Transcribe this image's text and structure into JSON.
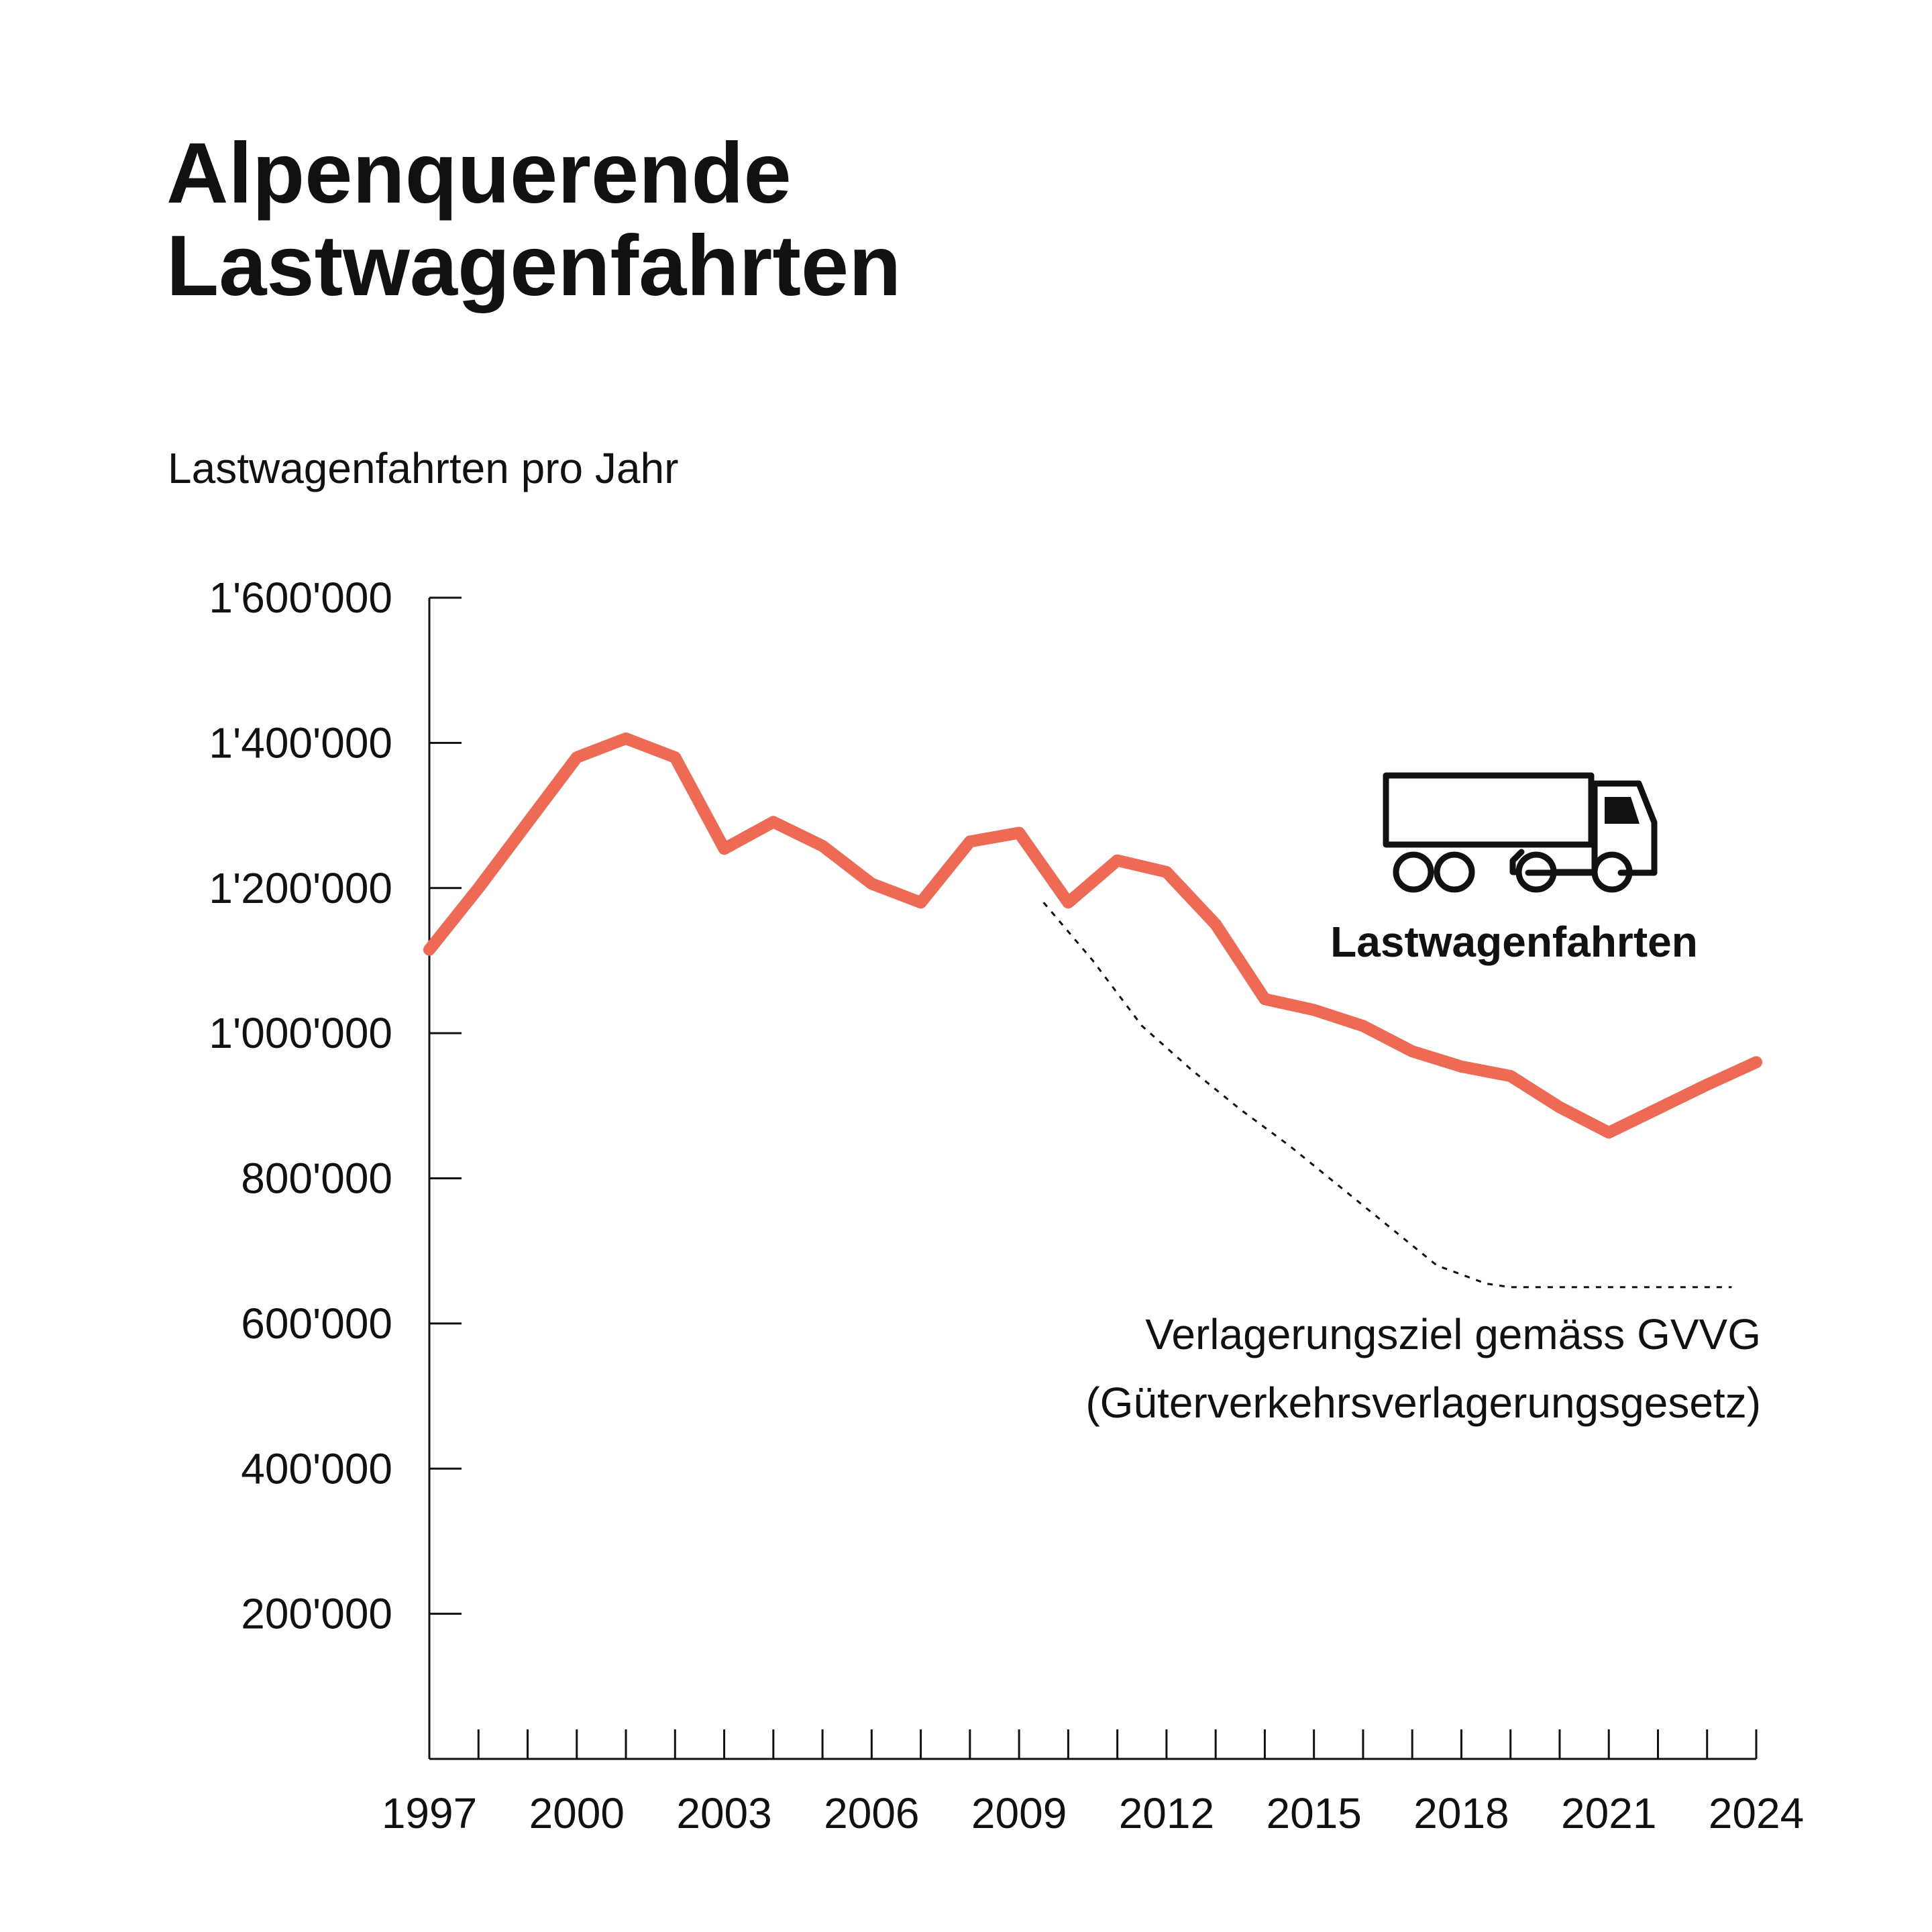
{
  "chart_data": {
    "type": "line",
    "title_lines": [
      "Alpenquerende",
      "Lastwagenfahrten"
    ],
    "subtitle": "Lastwagenfahrten pro Jahr",
    "xlabel": "",
    "ylabel": "",
    "xlim": [
      1997,
      2024
    ],
    "ylim": [
      0,
      1600000
    ],
    "y_ticks": [
      200000,
      400000,
      600000,
      800000,
      1000000,
      1200000,
      1400000,
      1600000
    ],
    "y_tick_labels": [
      "200'000",
      "400'000",
      "600'000",
      "800'000",
      "1'000'000",
      "1'200'000",
      "1'400'000",
      "1'600'000"
    ],
    "x_minor_ticks": [
      1997,
      1998,
      1999,
      2000,
      2001,
      2002,
      2003,
      2004,
      2005,
      2006,
      2007,
      2008,
      2009,
      2010,
      2011,
      2012,
      2013,
      2014,
      2015,
      2016,
      2017,
      2018,
      2019,
      2020,
      2021,
      2022,
      2023,
      2024
    ],
    "x_tick_labels": [
      "1997",
      "2000",
      "2003",
      "2006",
      "2009",
      "2012",
      "2015",
      "2018",
      "2021",
      "2024"
    ],
    "grid": false,
    "series": [
      {
        "name": "Lastwagenfahrten",
        "color": "#ee6a55",
        "x": [
          1997,
          1998,
          1999,
          2000,
          2001,
          2002,
          2003,
          2004,
          2005,
          2006,
          2007,
          2008,
          2009,
          2010,
          2011,
          2012,
          2013,
          2014,
          2015,
          2016,
          2017,
          2018,
          2019,
          2020,
          2021,
          2022,
          2023,
          2024
        ],
        "values": [
          1115000,
          1200000,
          1290000,
          1380000,
          1406000,
          1380000,
          1254000,
          1291000,
          1258000,
          1206000,
          1180000,
          1264000,
          1276000,
          1180000,
          1238000,
          1222000,
          1150000,
          1047000,
          1032000,
          1010000,
          975000,
          954000,
          941000,
          898000,
          863000,
          896000,
          929000,
          960000
        ]
      },
      {
        "name": "Verlagerungsziel gemäss GVVG",
        "style": "dotted",
        "color": "#111111",
        "x": [
          2009.5,
          2010.5,
          2011.5,
          2012.5,
          2013.5,
          2014.5,
          2015.5,
          2016.5,
          2017.5,
          2018.5,
          2019,
          2020,
          2021,
          2022,
          2023.5
        ],
        "values": [
          1180000,
          1100000,
          1010000,
          950000,
          895000,
          845000,
          790000,
          735000,
          680000,
          655000,
          650000,
          650000,
          650000,
          650000,
          650000
        ]
      }
    ],
    "annotations": {
      "series_label": "Lastwagenfahrten",
      "target_label_lines": [
        "Verlagerungsziel gemäss GVVG",
        "(Güterverkehrsverlagerungsgesetz)"
      ]
    },
    "icon": "truck-icon"
  }
}
